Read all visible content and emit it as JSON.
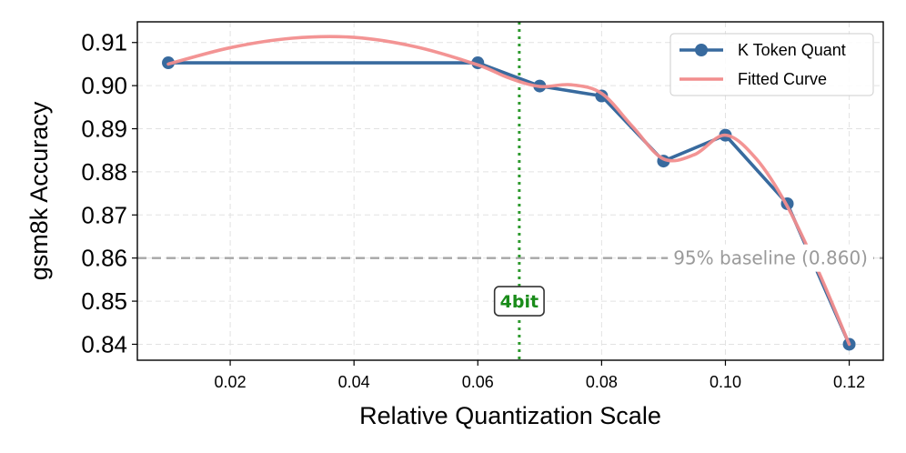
{
  "chart_data": {
    "type": "line",
    "xlabel": "Relative Quantization Scale",
    "ylabel": "gsm8k Accuracy",
    "xlim": [
      0.005,
      0.1255
    ],
    "ylim": [
      0.8363,
      0.9148
    ],
    "xticks": [
      0.02,
      0.04,
      0.06,
      0.08,
      0.1,
      0.12
    ],
    "xtick_labels": [
      "0.02",
      "0.04",
      "0.06",
      "0.08",
      "0.10",
      "0.12"
    ],
    "yticks": [
      0.84,
      0.85,
      0.86,
      0.87,
      0.88,
      0.89,
      0.9,
      0.91
    ],
    "ytick_labels": [
      "0.84",
      "0.85",
      "0.86",
      "0.87",
      "0.88",
      "0.89",
      "0.90",
      "0.91"
    ],
    "grid": true,
    "legend_position": "top-right",
    "series": [
      {
        "name": "K Token Quant",
        "color": "#386a9e",
        "marker": "circle",
        "x": [
          0.01,
          0.06,
          0.07,
          0.08,
          0.09,
          0.1,
          0.11,
          0.12
        ],
        "y": [
          0.9053,
          0.9053,
          0.8999,
          0.8976,
          0.8825,
          0.8885,
          0.8726,
          0.84
        ]
      },
      {
        "name": "Fitted Curve",
        "color": "#f28e8e",
        "marker": "none",
        "x": [
          0.01,
          0.02,
          0.03,
          0.04,
          0.05,
          0.06,
          0.065,
          0.07,
          0.075,
          0.08,
          0.085,
          0.09,
          0.095,
          0.1,
          0.105,
          0.11,
          0.115,
          0.12
        ],
        "y": [
          0.905,
          0.9088,
          0.911,
          0.9112,
          0.909,
          0.9048,
          0.9018,
          0.8998,
          0.9002,
          0.8982,
          0.8905,
          0.883,
          0.884,
          0.8885,
          0.883,
          0.872,
          0.857,
          0.84
        ]
      }
    ],
    "reference_lines": [
      {
        "orientation": "horizontal",
        "value": 0.86,
        "color": "#a6a6a6",
        "style": "dashed",
        "label": "95% baseline (0.860)"
      },
      {
        "orientation": "vertical",
        "value": 0.0667,
        "color": "#2e9a2e",
        "style": "dotted",
        "label": "4bit",
        "label_y": 0.85
      }
    ]
  }
}
